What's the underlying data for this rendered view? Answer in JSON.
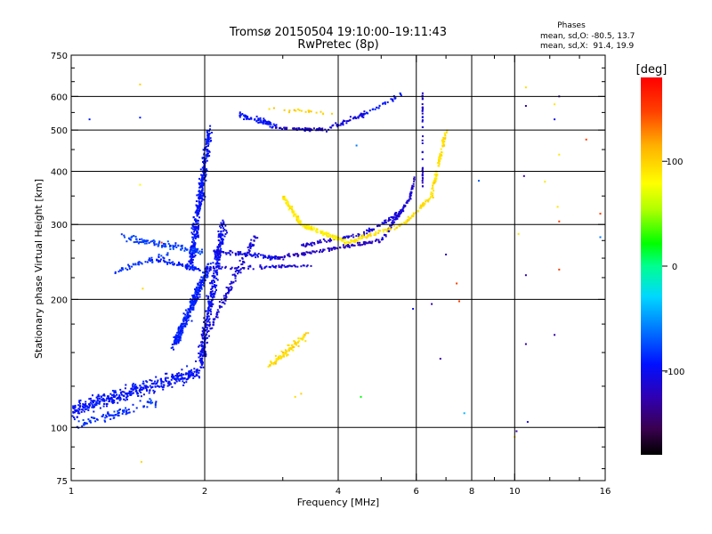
{
  "chart_data": {
    "type": "scatter",
    "title": "Tromsø 20150504 19:10:00–19:11:43",
    "subtitle": "RwPretec (8p)",
    "phases_box": {
      "heading": "Phases",
      "line_o": "mean, sd,O: -80.5, 13.7",
      "line_x": "mean, sd,X:  91.4, 19.9"
    },
    "xlabel": "Frequency [MHz]",
    "ylabel": "Stationary phase Virtual Height [km]",
    "x_scale": "log",
    "y_scale": "log",
    "xlim": [
      1,
      16
    ],
    "ylim": [
      75,
      750
    ],
    "x_ticks": [
      {
        "value": 1,
        "label": "1"
      },
      {
        "value": 2,
        "label": "2"
      },
      {
        "value": 4,
        "label": "4"
      },
      {
        "value": 6,
        "label": "6"
      },
      {
        "value": 8,
        "label": "8"
      },
      {
        "value": 10,
        "label": "10"
      },
      {
        "value": 16,
        "label": "16"
      }
    ],
    "x_minor_ticks": [
      3,
      5,
      7,
      9,
      12,
      14
    ],
    "y_ticks": [
      {
        "value": 75,
        "label": "75"
      },
      {
        "value": 100,
        "label": "100"
      },
      {
        "value": 200,
        "label": "200"
      },
      {
        "value": 300,
        "label": "300"
      },
      {
        "value": 400,
        "label": "400"
      },
      {
        "value": 500,
        "label": "500"
      },
      {
        "value": 600,
        "label": "600"
      },
      {
        "value": 750,
        "label": "750"
      }
    ],
    "y_minor_ticks": [
      80,
      90,
      125,
      150,
      175,
      225,
      250,
      275,
      350,
      450,
      550,
      650,
      700
    ],
    "x_gridlines": [
      2,
      4,
      6,
      8,
      10
    ],
    "y_gridlines": [
      100,
      200,
      300,
      400,
      500,
      600
    ],
    "grid": true,
    "colorbar": {
      "label": "[deg]",
      "range": [
        -180,
        180
      ],
      "ticks": [
        {
          "value": 100,
          "label": "100"
        },
        {
          "value": 0,
          "label": "0"
        },
        {
          "value": -100,
          "label": "-100"
        }
      ],
      "placement": "right",
      "colormap": "rainbow: black → purple → blue → cyan → green → yellow → orange → red"
    },
    "traces": [
      {
        "from": [
          1.0,
          110
        ],
        "to": [
          1.95,
          135
        ],
        "n": 420,
        "jitter": 0.07,
        "phase": -95
      },
      {
        "from": [
          1.03,
          101
        ],
        "to": [
          1.55,
          115
        ],
        "n": 90,
        "jitter": 0.04,
        "phase": -85
      },
      {
        "from": [
          1.7,
          155
        ],
        "to": [
          2.05,
          240
        ],
        "n": 320,
        "jitter": 0.06,
        "phase": -90
      },
      {
        "from": [
          1.86,
          240
        ],
        "to": [
          2.05,
          500
        ],
        "n": 380,
        "jitter": 0.07,
        "phase": -95
      },
      {
        "from": [
          1.95,
          140
        ],
        "to": [
          2.2,
          300
        ],
        "n": 340,
        "jitter": 0.08,
        "phase": -100
      },
      {
        "from": [
          2.05,
          170
        ],
        "to": [
          2.6,
          280
        ],
        "n": 120,
        "jitter": 0.05,
        "phase": -110
      },
      {
        "from": [
          1.3,
          280
        ],
        "to": [
          2.0,
          258
        ],
        "n": 110,
        "jitter": 0.03,
        "phase": -80
      },
      {
        "from": [
          1.25,
          232
        ],
        "to": [
          1.65,
          255
        ],
        "n": 50,
        "jitter": 0.03,
        "phase": -85
      },
      {
        "from": [
          1.55,
          248
        ],
        "to": [
          1.95,
          235
        ],
        "n": 60,
        "jitter": 0.02,
        "phase": -90
      },
      {
        "from": [
          2.1,
          260
        ],
        "to": [
          2.9,
          250
        ],
        "n": 90,
        "jitter": 0.02,
        "phase": -105
      },
      {
        "from": [
          2.9,
          250
        ],
        "to": [
          5.0,
          275
        ],
        "n": 120,
        "jitter": 0.02,
        "phase": -120
      },
      {
        "from": [
          2.0,
          236
        ],
        "to": [
          3.5,
          240
        ],
        "n": 70,
        "jitter": 0.015,
        "phase": -110
      },
      {
        "from": [
          5.0,
          275
        ],
        "to": [
          5.8,
          345
        ],
        "n": 70,
        "jitter": 0.02,
        "phase": -110
      },
      {
        "from": [
          5.8,
          345
        ],
        "to": [
          5.95,
          385
        ],
        "n": 25,
        "jitter": 0.02,
        "phase": -115
      },
      {
        "from": [
          3.3,
          268
        ],
        "to": [
          4.6,
          285
        ],
        "n": 60,
        "jitter": 0.02,
        "phase": -115
      },
      {
        "from": [
          4.6,
          285
        ],
        "to": [
          5.5,
          320
        ],
        "n": 45,
        "jitter": 0.02,
        "phase": -110
      },
      {
        "from": [
          4.2,
          272
        ],
        "to": [
          5.6,
          300
        ],
        "n": 70,
        "jitter": 0.02,
        "phase": 90
      },
      {
        "from": [
          5.6,
          300
        ],
        "to": [
          6.5,
          350
        ],
        "n": 50,
        "jitter": 0.02,
        "phase": 95
      },
      {
        "from": [
          6.5,
          350
        ],
        "to": [
          7.0,
          500
        ],
        "n": 90,
        "jitter": 0.03,
        "phase": 92
      },
      {
        "from": [
          3.0,
          350
        ],
        "to": [
          3.3,
          300
        ],
        "n": 80,
        "jitter": 0.03,
        "phase": 90
      },
      {
        "from": [
          3.3,
          300
        ],
        "to": [
          4.2,
          272
        ],
        "n": 110,
        "jitter": 0.02,
        "phase": 85
      },
      {
        "from": [
          2.8,
          140
        ],
        "to": [
          3.4,
          165
        ],
        "n": 90,
        "jitter": 0.04,
        "phase": 95
      },
      {
        "from": [
          2.4,
          545
        ],
        "to": [
          2.9,
          510
        ],
        "n": 70,
        "jitter": 0.03,
        "phase": -95
      },
      {
        "from": [
          2.9,
          505
        ],
        "to": [
          3.8,
          500
        ],
        "n": 70,
        "jitter": 0.015,
        "phase": -112
      },
      {
        "from": [
          3.8,
          505
        ],
        "to": [
          4.6,
          545
        ],
        "n": 50,
        "jitter": 0.02,
        "phase": -108
      },
      {
        "from": [
          4.6,
          545
        ],
        "to": [
          5.6,
          610
        ],
        "n": 30,
        "jitter": 0.02,
        "phase": -95
      },
      {
        "from": [
          2.7,
          565
        ],
        "to": [
          3.9,
          545
        ],
        "n": 20,
        "jitter": 0.02,
        "phase": 100
      },
      {
        "from": [
          6.2,
          360
        ],
        "to": [
          6.2,
          625
        ],
        "n": 40,
        "jitter": 0.005,
        "phase": -115
      }
    ],
    "isolated_points": [
      {
        "x": 1.43,
        "y": 640,
        "phase": 100
      },
      {
        "x": 1.43,
        "y": 535,
        "phase": -90
      },
      {
        "x": 1.43,
        "y": 372,
        "phase": 80
      },
      {
        "x": 1.45,
        "y": 212,
        "phase": 95
      },
      {
        "x": 1.44,
        "y": 83,
        "phase": 95
      },
      {
        "x": 1.1,
        "y": 530,
        "phase": -90
      },
      {
        "x": 10.2,
        "y": 285,
        "phase": 90
      },
      {
        "x": 10.5,
        "y": 390,
        "phase": -130
      },
      {
        "x": 10.6,
        "y": 630,
        "phase": 95
      },
      {
        "x": 10.6,
        "y": 570,
        "phase": -130
      },
      {
        "x": 10.6,
        "y": 228,
        "phase": -130
      },
      {
        "x": 10.6,
        "y": 157,
        "phase": -130
      },
      {
        "x": 10.7,
        "y": 103,
        "phase": -110
      },
      {
        "x": 11.7,
        "y": 378,
        "phase": 90
      },
      {
        "x": 12.3,
        "y": 575,
        "phase": 90
      },
      {
        "x": 12.3,
        "y": 530,
        "phase": -100
      },
      {
        "x": 12.3,
        "y": 165,
        "phase": -130
      },
      {
        "x": 12.6,
        "y": 600,
        "phase": -130
      },
      {
        "x": 12.6,
        "y": 235,
        "phase": 150
      },
      {
        "x": 12.6,
        "y": 305,
        "phase": 150
      },
      {
        "x": 12.5,
        "y": 330,
        "phase": 90
      },
      {
        "x": 12.6,
        "y": 438,
        "phase": 90
      },
      {
        "x": 14.5,
        "y": 475,
        "phase": 150
      },
      {
        "x": 15.6,
        "y": 280,
        "phase": -60
      },
      {
        "x": 15.6,
        "y": 318,
        "phase": 150
      },
      {
        "x": 10.0,
        "y": 95,
        "phase": 100
      },
      {
        "x": 10.1,
        "y": 98,
        "phase": -130
      },
      {
        "x": 7.4,
        "y": 218,
        "phase": 150
      },
      {
        "x": 7.5,
        "y": 198,
        "phase": 150
      },
      {
        "x": 7.7,
        "y": 108,
        "phase": -40
      },
      {
        "x": 8.3,
        "y": 380,
        "phase": -70
      },
      {
        "x": 7.0,
        "y": 255,
        "phase": -120
      },
      {
        "x": 4.5,
        "y": 118,
        "phase": 20
      },
      {
        "x": 4.4,
        "y": 460,
        "phase": -60
      },
      {
        "x": 3.2,
        "y": 118,
        "phase": 95
      },
      {
        "x": 3.3,
        "y": 120,
        "phase": 100
      },
      {
        "x": 1.6,
        "y": 272,
        "phase": 150
      },
      {
        "x": 1.87,
        "y": 178,
        "phase": -90
      },
      {
        "x": 6.8,
        "y": 145,
        "phase": -130
      },
      {
        "x": 5.9,
        "y": 190,
        "phase": -100
      },
      {
        "x": 6.5,
        "y": 195,
        "phase": -130
      }
    ]
  }
}
